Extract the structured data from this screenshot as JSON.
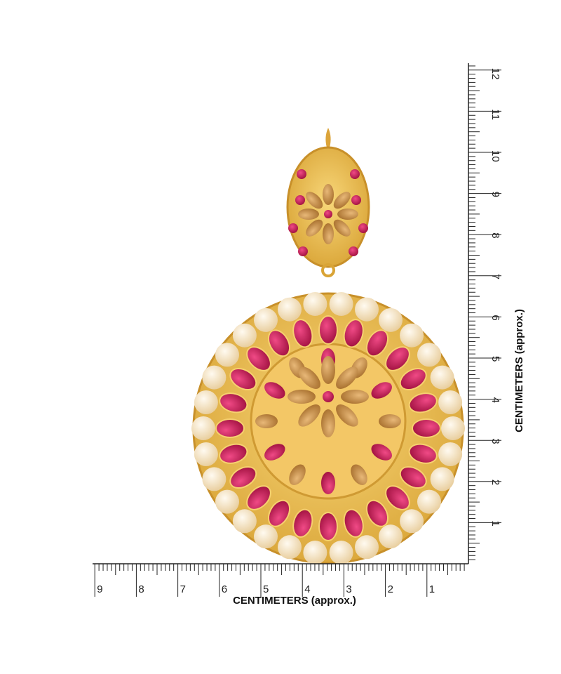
{
  "horizontal_ruler": {
    "title": "CENTIMETERS (approx.)",
    "labels": [
      9,
      8,
      7,
      6,
      5,
      4,
      3,
      2,
      1
    ]
  },
  "vertical_ruler": {
    "title": "CENTIMETERS (approx.)",
    "labels": [
      1,
      2,
      3,
      4,
      5,
      6,
      7,
      8,
      9,
      10,
      11,
      12
    ]
  }
}
